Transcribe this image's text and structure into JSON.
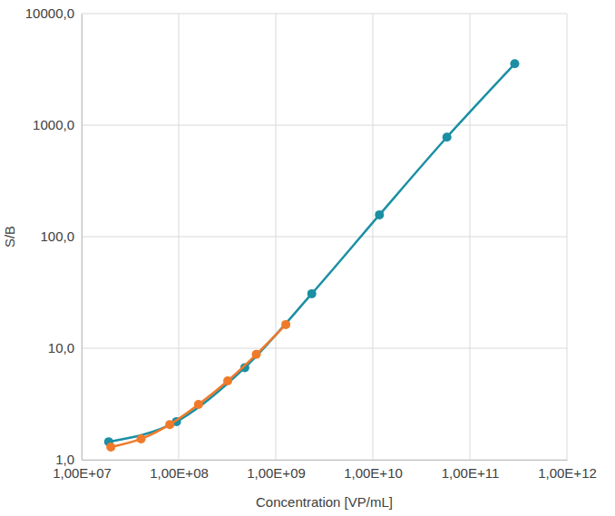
{
  "chart_data": {
    "type": "line",
    "x_label": "Concentration [VP/mL]",
    "y_label": "S/B",
    "log": true,
    "grid": true,
    "marker": "circle",
    "xlim": [
      10000000,
      1000000000000
    ],
    "xticks": [
      {
        "value": 10000000,
        "label": "1,00E+07"
      },
      {
        "value": 100000000,
        "label": "1,00E+08"
      },
      {
        "value": 1000000000,
        "label": "1,00E+09"
      },
      {
        "value": 10000000000,
        "label": "1,00E+10"
      },
      {
        "value": 100000000000,
        "label": "1,00E+11"
      },
      {
        "value": 1000000000000,
        "label": "1,00E+12"
      }
    ],
    "ylim": [
      1,
      10000
    ],
    "yticks": [
      {
        "value": 1,
        "label": "1,0"
      },
      {
        "value": 10,
        "label": "10,0"
      },
      {
        "value": 100,
        "label": "100,0"
      },
      {
        "value": 1000,
        "label": "1000,0"
      },
      {
        "value": 10000,
        "label": "10000,0"
      }
    ],
    "series": [
      {
        "color": "#1b8fa3",
        "x": [
          19000000,
          95000000,
          480000000,
          2350000000,
          11700000000,
          58000000000,
          290000000000
        ],
        "values": [
          1.45,
          2.2,
          6.7,
          30.8,
          157,
          780,
          3550
        ]
      },
      {
        "color": "#f07a2a",
        "x": [
          20000000,
          41000000,
          81000000,
          160000000,
          320000000,
          630000000,
          1270000000
        ],
        "values": [
          1.3,
          1.54,
          2.07,
          3.13,
          5.1,
          8.8,
          16.3
        ]
      }
    ]
  }
}
